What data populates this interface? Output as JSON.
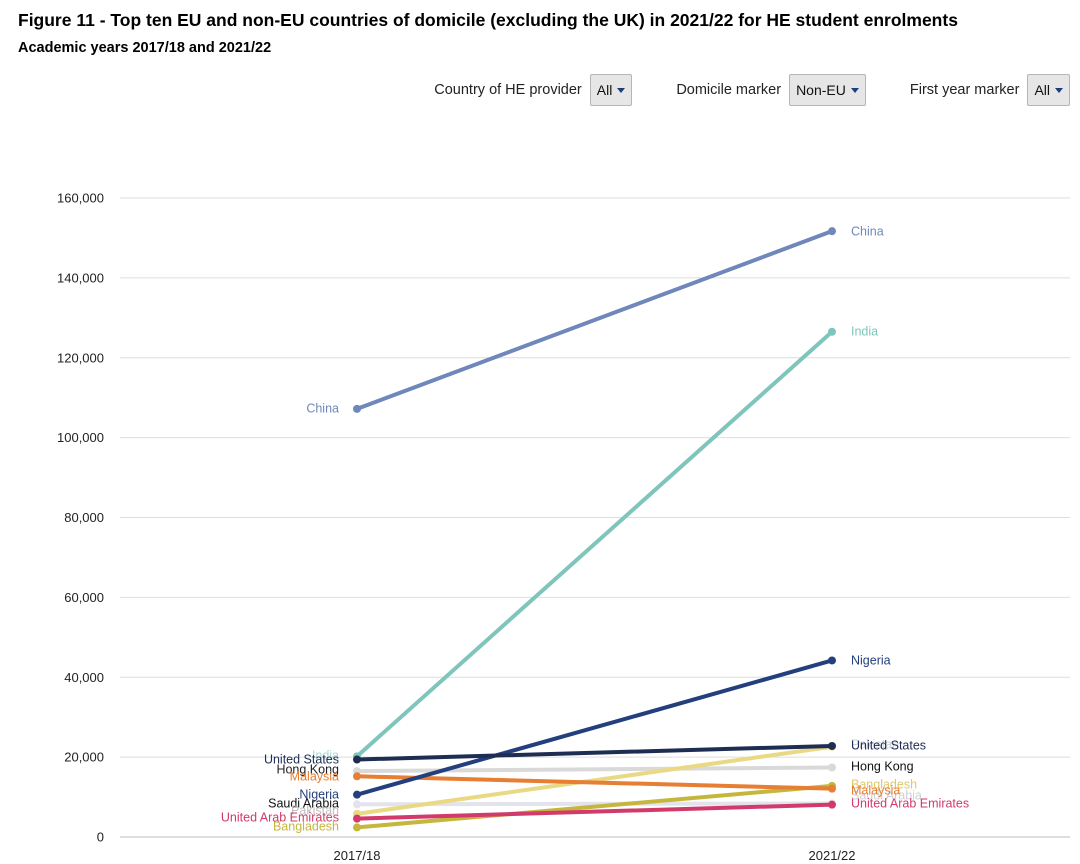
{
  "title": "Figure 11 - Top ten EU and non-EU countries of domicile (excluding the UK) in 2021/22 for HE student enrolments",
  "subtitle": "Academic years 2017/18 and 2021/22",
  "filters": [
    {
      "label": "Country of HE provider",
      "value": "All"
    },
    {
      "label": "Domicile marker",
      "value": "Non-EU"
    },
    {
      "label": "First year marker",
      "value": "All"
    }
  ],
  "chart_data": {
    "type": "line",
    "categories": [
      "2017/18",
      "2021/22"
    ],
    "ylim": [
      0,
      160000
    ],
    "yticks": [
      0,
      20000,
      40000,
      60000,
      80000,
      100000,
      120000,
      140000,
      160000
    ],
    "ytick_labels": [
      "0",
      "20,000",
      "40,000",
      "60,000",
      "80,000",
      "100,000",
      "120,000",
      "140,000",
      "160,000"
    ],
    "grid": true,
    "series": [
      {
        "name": "China",
        "values": [
          107200,
          151700
        ],
        "color": "#6f87ba"
      },
      {
        "name": "India",
        "values": [
          20200,
          126500
        ],
        "color": "#7fc5bc"
      },
      {
        "name": "Nigeria",
        "values": [
          10600,
          44200
        ],
        "color": "#233f7d"
      },
      {
        "name": "United States",
        "values": [
          19400,
          22800
        ],
        "color": "#1e2d52"
      },
      {
        "name": "Hong Kong",
        "values": [
          16500,
          17400
        ],
        "color": "#d9d9d9"
      },
      {
        "name": "Pakistan",
        "values": [
          5800,
          22600
        ],
        "color": "#ead983"
      },
      {
        "name": "Malaysia",
        "values": [
          15200,
          12100
        ],
        "color": "#e67e33"
      },
      {
        "name": "Bangladesh",
        "values": [
          2400,
          12800
        ],
        "color": "#c5b73e"
      },
      {
        "name": "Saudi Arabia",
        "values": [
          8200,
          8400
        ],
        "color": "#e3e3ed"
      },
      {
        "name": "United Arab Emirates",
        "values": [
          4600,
          8100
        ],
        "color": "#d13a6a"
      }
    ],
    "labels_left": [
      {
        "text": "China",
        "color": "#6f87ba"
      },
      {
        "text": "India",
        "color": "#a8d9d3"
      },
      {
        "text": "United States",
        "color": "#1e2d52"
      },
      {
        "text": "Hong Kong",
        "color": "#222222"
      },
      {
        "text": "Malaysia",
        "color": "#e67e33"
      },
      {
        "text": "Nigeria",
        "color": "#233f7d"
      },
      {
        "text": "Saudi Arabia",
        "color": "#111111"
      },
      {
        "text": "Pakistan",
        "color": "#bfbfbf"
      },
      {
        "text": "United Arab Emirates",
        "color": "#d13a6a"
      },
      {
        "text": "Bangladesh",
        "color": "#c5b73e"
      }
    ],
    "labels_right": [
      {
        "text": "China",
        "color": "#6f87ba"
      },
      {
        "text": "India",
        "color": "#7fc5bc"
      },
      {
        "text": "Nigeria",
        "color": "#233f7d"
      },
      {
        "text": "Pakistan",
        "color": "#cfd0d8"
      },
      {
        "text": "United States",
        "color": "#1e2d52"
      },
      {
        "text": "Hong Kong",
        "color": "#111111"
      },
      {
        "text": "Bangladesh",
        "color": "#e0c86a"
      },
      {
        "text": "Saudi Arabia",
        "color": "#cfd0d8"
      },
      {
        "text": "Malaysia",
        "color": "#e67e33"
      },
      {
        "text": "United Arab Emirates",
        "color": "#d13a6a"
      }
    ]
  }
}
